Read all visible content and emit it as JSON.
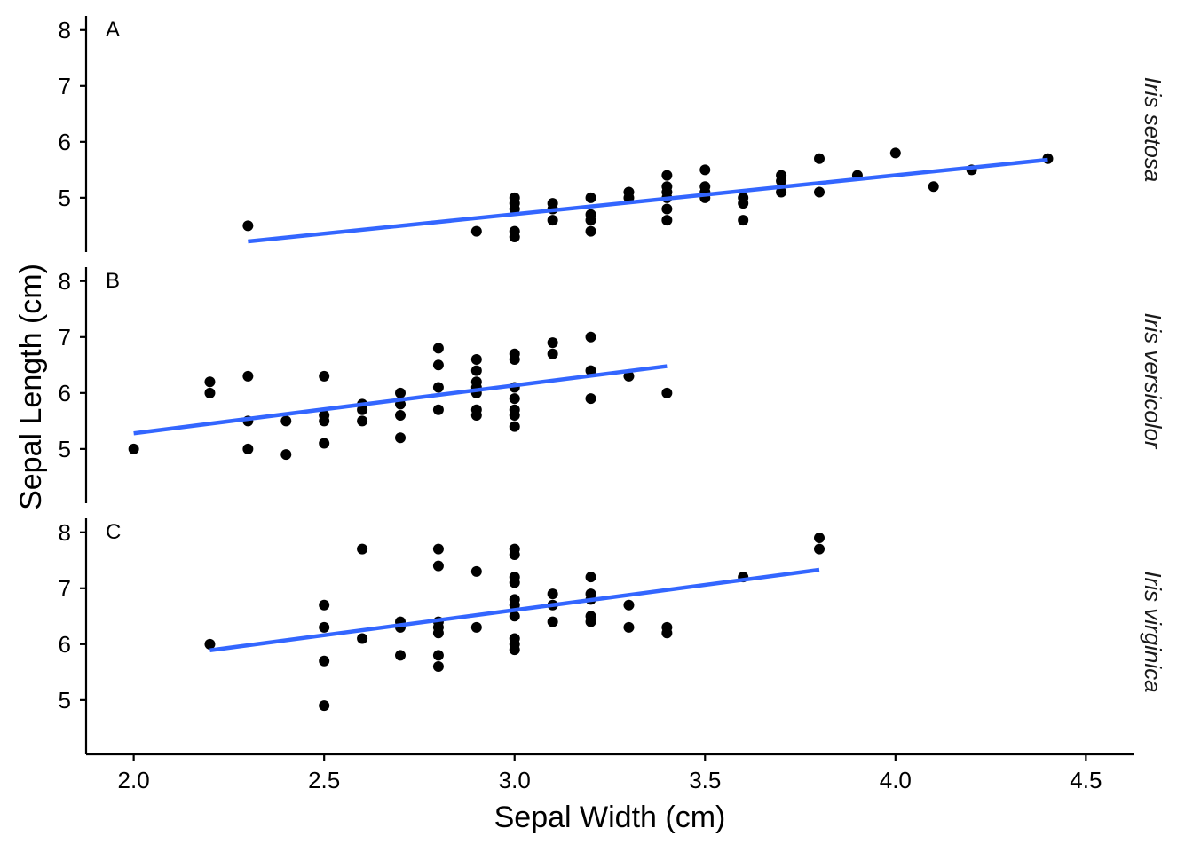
{
  "chart_data": {
    "type": "scatter",
    "xlabel": "Sepal Width (cm)",
    "ylabel": "Sepal Length (cm)",
    "xlim": [
      1.875,
      4.625
    ],
    "ylim": [
      4.03,
      8.25
    ],
    "x_ticks": [
      2.0,
      2.5,
      3.0,
      3.5,
      4.0,
      4.5
    ],
    "x_tick_labels": [
      "2.0",
      "2.5",
      "3.0",
      "3.5",
      "4.0",
      "4.5"
    ],
    "y_ticks": [
      5,
      6,
      7,
      8
    ],
    "y_tick_labels": [
      "5",
      "6",
      "7",
      "8"
    ],
    "grid": false,
    "point_color": "#000000",
    "fit_line_color": "#3366ff",
    "panels": [
      {
        "tag": "A",
        "strip_label": "Iris setosa",
        "fit": {
          "x": [
            2.3,
            4.4
          ],
          "y": [
            4.22,
            5.68
          ]
        },
        "points": [
          [
            2.3,
            4.5
          ],
          [
            2.9,
            4.4
          ],
          [
            3.0,
            4.3
          ],
          [
            3.0,
            4.4
          ],
          [
            3.0,
            4.8
          ],
          [
            3.0,
            4.9
          ],
          [
            3.0,
            5.0
          ],
          [
            3.1,
            4.6
          ],
          [
            3.1,
            4.8
          ],
          [
            3.1,
            4.9
          ],
          [
            3.2,
            4.4
          ],
          [
            3.2,
            4.6
          ],
          [
            3.2,
            4.7
          ],
          [
            3.2,
            5.0
          ],
          [
            3.3,
            5.0
          ],
          [
            3.3,
            5.1
          ],
          [
            3.4,
            4.6
          ],
          [
            3.4,
            4.8
          ],
          [
            3.4,
            5.0
          ],
          [
            3.4,
            5.1
          ],
          [
            3.4,
            5.2
          ],
          [
            3.4,
            5.4
          ],
          [
            3.5,
            5.0
          ],
          [
            3.5,
            5.1
          ],
          [
            3.5,
            5.2
          ],
          [
            3.5,
            5.5
          ],
          [
            3.6,
            4.6
          ],
          [
            3.6,
            4.9
          ],
          [
            3.6,
            5.0
          ],
          [
            3.7,
            5.1
          ],
          [
            3.7,
            5.3
          ],
          [
            3.7,
            5.4
          ],
          [
            3.8,
            5.1
          ],
          [
            3.8,
            5.7
          ],
          [
            3.9,
            5.4
          ],
          [
            4.0,
            5.8
          ],
          [
            4.1,
            5.2
          ],
          [
            4.2,
            5.5
          ],
          [
            4.4,
            5.7
          ]
        ]
      },
      {
        "tag": "B",
        "strip_label": "Iris versicolor",
        "fit": {
          "x": [
            2.0,
            3.4
          ],
          "y": [
            5.28,
            6.48
          ]
        },
        "points": [
          [
            2.0,
            5.0
          ],
          [
            2.2,
            6.0
          ],
          [
            2.2,
            6.2
          ],
          [
            2.3,
            5.0
          ],
          [
            2.3,
            5.5
          ],
          [
            2.3,
            6.3
          ],
          [
            2.4,
            4.9
          ],
          [
            2.4,
            5.5
          ],
          [
            2.5,
            5.1
          ],
          [
            2.5,
            5.5
          ],
          [
            2.5,
            5.6
          ],
          [
            2.5,
            6.3
          ],
          [
            2.6,
            5.5
          ],
          [
            2.6,
            5.7
          ],
          [
            2.6,
            5.8
          ],
          [
            2.7,
            5.2
          ],
          [
            2.7,
            5.6
          ],
          [
            2.7,
            5.8
          ],
          [
            2.7,
            6.0
          ],
          [
            2.8,
            5.7
          ],
          [
            2.8,
            6.1
          ],
          [
            2.8,
            6.5
          ],
          [
            2.8,
            6.8
          ],
          [
            2.9,
            5.6
          ],
          [
            2.9,
            5.7
          ],
          [
            2.9,
            6.0
          ],
          [
            2.9,
            6.1
          ],
          [
            2.9,
            6.2
          ],
          [
            2.9,
            6.4
          ],
          [
            2.9,
            6.6
          ],
          [
            3.0,
            5.4
          ],
          [
            3.0,
            5.6
          ],
          [
            3.0,
            5.7
          ],
          [
            3.0,
            5.9
          ],
          [
            3.0,
            6.1
          ],
          [
            3.0,
            6.6
          ],
          [
            3.0,
            6.7
          ],
          [
            3.1,
            6.7
          ],
          [
            3.1,
            6.9
          ],
          [
            3.2,
            5.9
          ],
          [
            3.2,
            6.4
          ],
          [
            3.2,
            7.0
          ],
          [
            3.3,
            6.3
          ],
          [
            3.4,
            6.0
          ]
        ]
      },
      {
        "tag": "C",
        "strip_label": "Iris virginica",
        "fit": {
          "x": [
            2.2,
            3.8
          ],
          "y": [
            5.89,
            7.33
          ]
        },
        "points": [
          [
            2.2,
            6.0
          ],
          [
            2.5,
            4.9
          ],
          [
            2.5,
            5.7
          ],
          [
            2.5,
            6.3
          ],
          [
            2.5,
            6.7
          ],
          [
            2.6,
            6.1
          ],
          [
            2.6,
            7.7
          ],
          [
            2.7,
            5.8
          ],
          [
            2.7,
            6.3
          ],
          [
            2.7,
            6.4
          ],
          [
            2.8,
            5.6
          ],
          [
            2.8,
            5.8
          ],
          [
            2.8,
            6.2
          ],
          [
            2.8,
            6.3
          ],
          [
            2.8,
            6.4
          ],
          [
            2.8,
            7.4
          ],
          [
            2.8,
            7.7
          ],
          [
            2.9,
            6.3
          ],
          [
            2.9,
            7.3
          ],
          [
            3.0,
            5.9
          ],
          [
            3.0,
            6.0
          ],
          [
            3.0,
            6.1
          ],
          [
            3.0,
            6.5
          ],
          [
            3.0,
            6.7
          ],
          [
            3.0,
            6.8
          ],
          [
            3.0,
            7.1
          ],
          [
            3.0,
            7.2
          ],
          [
            3.0,
            7.6
          ],
          [
            3.0,
            7.7
          ],
          [
            3.1,
            6.4
          ],
          [
            3.1,
            6.7
          ],
          [
            3.1,
            6.9
          ],
          [
            3.2,
            6.4
          ],
          [
            3.2,
            6.5
          ],
          [
            3.2,
            6.8
          ],
          [
            3.2,
            6.9
          ],
          [
            3.2,
            7.2
          ],
          [
            3.3,
            6.3
          ],
          [
            3.3,
            6.7
          ],
          [
            3.4,
            6.2
          ],
          [
            3.4,
            6.3
          ],
          [
            3.6,
            7.2
          ],
          [
            3.8,
            7.7
          ],
          [
            3.8,
            7.9
          ]
        ]
      }
    ]
  }
}
